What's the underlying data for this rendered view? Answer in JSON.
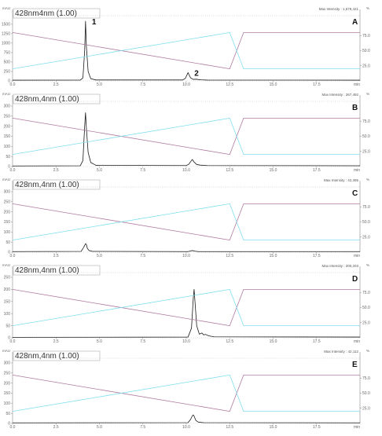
{
  "chart_data": [
    {
      "type": "line",
      "panel_label": "A",
      "trace_label": "428nm4nm (1.00)",
      "max_intensity": "Max Intensity : 1,579,421",
      "y_unit": "mAU",
      "x_unit": "min",
      "right_unit": "%",
      "xlim": [
        0,
        20
      ],
      "ylim": [
        0,
        1600
      ],
      "y_ticks": [
        "0",
        "250",
        "500",
        "750",
        "1000",
        "1250",
        "1500"
      ],
      "y2_ticks": [
        "25.0",
        "50.0",
        "75.0"
      ],
      "x_ticks": [
        "0.0",
        "2.5",
        "5.0",
        "7.5",
        "10.0",
        "12.5",
        "15.0",
        "17.5",
        "min"
      ],
      "peak_labels": [
        {
          "text": "1",
          "x": 4.2,
          "y": 1579
        },
        {
          "text": "2",
          "x": 10.1,
          "y": 220
        }
      ],
      "series": [
        {
          "name": "chromatogram",
          "x": [
            0,
            3.9,
            4.05,
            4.15,
            4.2,
            4.25,
            4.35,
            4.5,
            4.8,
            9.8,
            9.95,
            10.05,
            10.1,
            10.15,
            10.25,
            10.4,
            10.6,
            10.7,
            10.85,
            11.2,
            20
          ],
          "y": [
            20,
            22,
            80,
            800,
            1579,
            900,
            250,
            60,
            25,
            25,
            70,
            170,
            220,
            170,
            80,
            40,
            45,
            35,
            28,
            22,
            20
          ]
        },
        {
          "name": "gradient-purple",
          "x": [
            0,
            12.5,
            13.3,
            20
          ],
          "y": [
            80,
            20,
            80,
            80
          ]
        },
        {
          "name": "gradient-cyan",
          "x": [
            0,
            12.5,
            13.3,
            20
          ],
          "y": [
            20,
            80,
            20,
            20
          ]
        }
      ]
    },
    {
      "type": "line",
      "panel_label": "B",
      "trace_label": "428nm,4nm (1.00)",
      "max_intensity": "Max Intensity : 267,492",
      "y_unit": "mAU",
      "x_unit": "min",
      "right_unit": "%",
      "xlim": [
        0,
        20
      ],
      "ylim": [
        0,
        300
      ],
      "y_ticks": [
        "0",
        "50",
        "100",
        "150",
        "200",
        "250",
        "300"
      ],
      "y2_ticks": [
        "25.0",
        "50.0",
        "75.0"
      ],
      "x_ticks": [
        "0.0",
        "2.5",
        "5.0",
        "7.5",
        "10.0",
        "12.5",
        "15.0",
        "17.5",
        "min"
      ],
      "peak_labels": [],
      "series": [
        {
          "name": "chromatogram",
          "x": [
            0,
            3.9,
            4.05,
            4.15,
            4.2,
            4.25,
            4.35,
            4.5,
            4.8,
            10.0,
            10.15,
            10.3,
            10.35,
            10.45,
            10.6,
            10.8,
            11.2,
            20
          ],
          "y": [
            3,
            4,
            30,
            200,
            267,
            190,
            70,
            20,
            6,
            5,
            12,
            30,
            35,
            22,
            10,
            7,
            5,
            4
          ]
        },
        {
          "name": "gradient-purple",
          "x": [
            0,
            12.5,
            13.3,
            20
          ],
          "y": [
            80,
            20,
            80,
            80
          ]
        },
        {
          "name": "gradient-cyan",
          "x": [
            0,
            12.5,
            13.3,
            20
          ],
          "y": [
            20,
            80,
            20,
            20
          ]
        }
      ]
    },
    {
      "type": "line",
      "panel_label": "C",
      "trace_label": "428nm,4nm (1.00)",
      "max_intensity": "Max Intensity : 42,395",
      "y_unit": "mAU",
      "x_unit": "min",
      "right_unit": "%",
      "xlim": [
        0,
        20
      ],
      "ylim": [
        0,
        300
      ],
      "y_ticks": [
        "0",
        "50",
        "100",
        "150",
        "200",
        "250",
        "300"
      ],
      "y2_ticks": [
        "25.0",
        "50.0",
        "75.0"
      ],
      "x_ticks": [
        "0.0",
        "2.5",
        "5.0",
        "7.5",
        "10.0",
        "12.5",
        "15.0",
        "17.5",
        "min"
      ],
      "peak_labels": [],
      "series": [
        {
          "name": "chromatogram",
          "x": [
            0,
            3.95,
            4.1,
            4.2,
            4.25,
            4.3,
            4.4,
            4.6,
            10.1,
            10.25,
            10.35,
            10.5,
            10.7,
            20
          ],
          "y": [
            3,
            4,
            25,
            42,
            38,
            20,
            8,
            4,
            3,
            6,
            8,
            5,
            3,
            3
          ]
        },
        {
          "name": "gradient-purple",
          "x": [
            0,
            12.5,
            13.3,
            20
          ],
          "y": [
            80,
            20,
            80,
            80
          ]
        },
        {
          "name": "gradient-cyan",
          "x": [
            0,
            12.5,
            13.3,
            20
          ],
          "y": [
            20,
            80,
            20,
            20
          ]
        }
      ]
    },
    {
      "type": "line",
      "panel_label": "D",
      "trace_label": "428nm,4nm (1.00)",
      "max_intensity": "Max Intensity : 200,203",
      "y_unit": "mAU",
      "x_unit": "min",
      "right_unit": "%",
      "xlim": [
        0,
        20
      ],
      "ylim": [
        0,
        250
      ],
      "y_ticks": [
        "0",
        "50",
        "100",
        "150",
        "200",
        "250"
      ],
      "y2_ticks": [
        "25.0",
        "50.0",
        "75.0"
      ],
      "x_ticks": [
        "0.0",
        "2.5",
        "5.0",
        "7.5",
        "10.0",
        "12.5",
        "15.0",
        "17.5",
        "min"
      ],
      "peak_labels": [],
      "series": [
        {
          "name": "chromatogram",
          "x": [
            0,
            10.1,
            10.3,
            10.4,
            10.45,
            10.5,
            10.6,
            10.75,
            10.9,
            11.0,
            11.1,
            11.3,
            11.6,
            20
          ],
          "y": [
            2,
            3,
            40,
            160,
            200,
            150,
            50,
            15,
            20,
            12,
            14,
            8,
            4,
            3
          ]
        },
        {
          "name": "gradient-purple",
          "x": [
            0,
            12.5,
            13.3,
            20
          ],
          "y": [
            80,
            20,
            80,
            80
          ]
        },
        {
          "name": "gradient-cyan",
          "x": [
            0,
            12.5,
            13.3,
            20
          ],
          "y": [
            20,
            80,
            20,
            20
          ]
        }
      ]
    },
    {
      "type": "line",
      "panel_label": "E",
      "trace_label": "428nm,4nm (1.00)",
      "max_intensity": "Max Intensity : 42,112",
      "y_unit": "mAU",
      "x_unit": "min",
      "right_unit": "%",
      "xlim": [
        0,
        20
      ],
      "ylim": [
        0,
        300
      ],
      "y_ticks": [
        "0",
        "50",
        "100",
        "150",
        "200",
        "250",
        "300"
      ],
      "y2_ticks": [
        "25.0",
        "50.0",
        "75.0"
      ],
      "x_ticks": [
        "0.0",
        "2.5",
        "5.0",
        "7.5",
        "10.0",
        "12.5",
        "15.0",
        "17.5",
        "min"
      ],
      "peak_labels": [],
      "series": [
        {
          "name": "chromatogram",
          "x": [
            0,
            10.1,
            10.25,
            10.35,
            10.4,
            10.45,
            10.55,
            10.7,
            11.0,
            20
          ],
          "y": [
            3,
            4,
            20,
            38,
            42,
            36,
            15,
            6,
            4,
            3
          ]
        },
        {
          "name": "gradient-purple",
          "x": [
            0,
            12.5,
            13.3,
            20
          ],
          "y": [
            80,
            20,
            80,
            80
          ]
        },
        {
          "name": "gradient-cyan",
          "x": [
            0,
            12.5,
            13.3,
            20
          ],
          "y": [
            20,
            80,
            20,
            20
          ]
        }
      ]
    }
  ],
  "colors": {
    "chromatogram": "#1a1a1a",
    "gradient_purple": "#b07aa0",
    "gradient_cyan": "#7fdfef",
    "axis": "#888888",
    "dots": "#bbbbbb"
  }
}
